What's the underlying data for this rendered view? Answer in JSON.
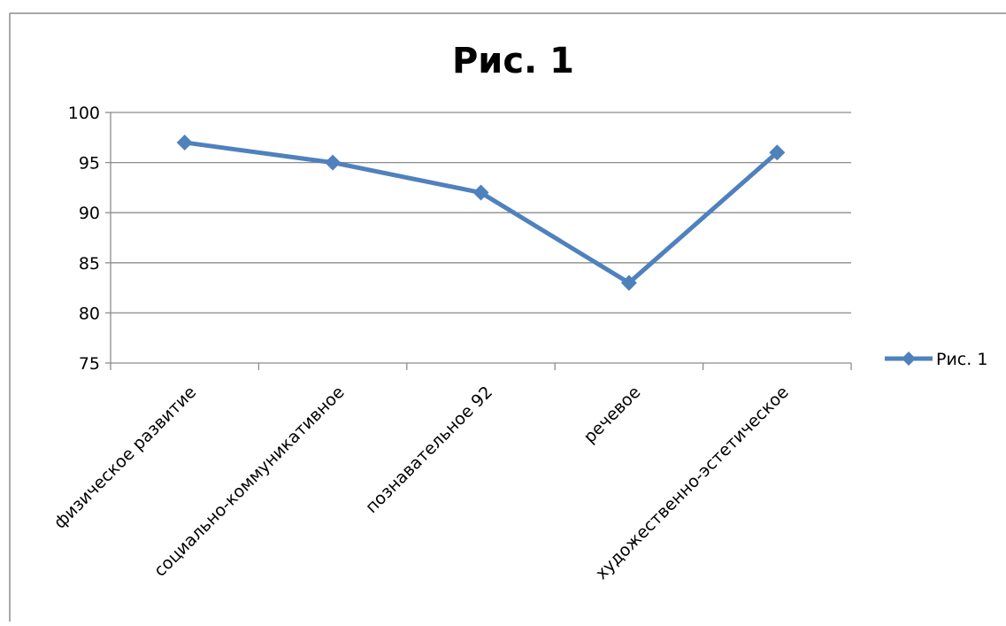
{
  "chart_data": {
    "type": "line",
    "title": "Рис. 1",
    "xlabel": "",
    "ylabel": "",
    "categories": [
      "физическое  развитие",
      "социально-коммуникативное",
      "познавательное 92",
      "речевое",
      "художественно-эстетическое"
    ],
    "series": [
      {
        "name": "Рис. 1",
        "values": [
          97,
          95,
          92,
          83,
          96
        ],
        "color": "#4F81BD",
        "marker": "diamond"
      }
    ],
    "ylim": [
      75,
      100
    ],
    "yticks": [
      100,
      95,
      90,
      85,
      80,
      75
    ],
    "grid": true,
    "legend": "right"
  }
}
